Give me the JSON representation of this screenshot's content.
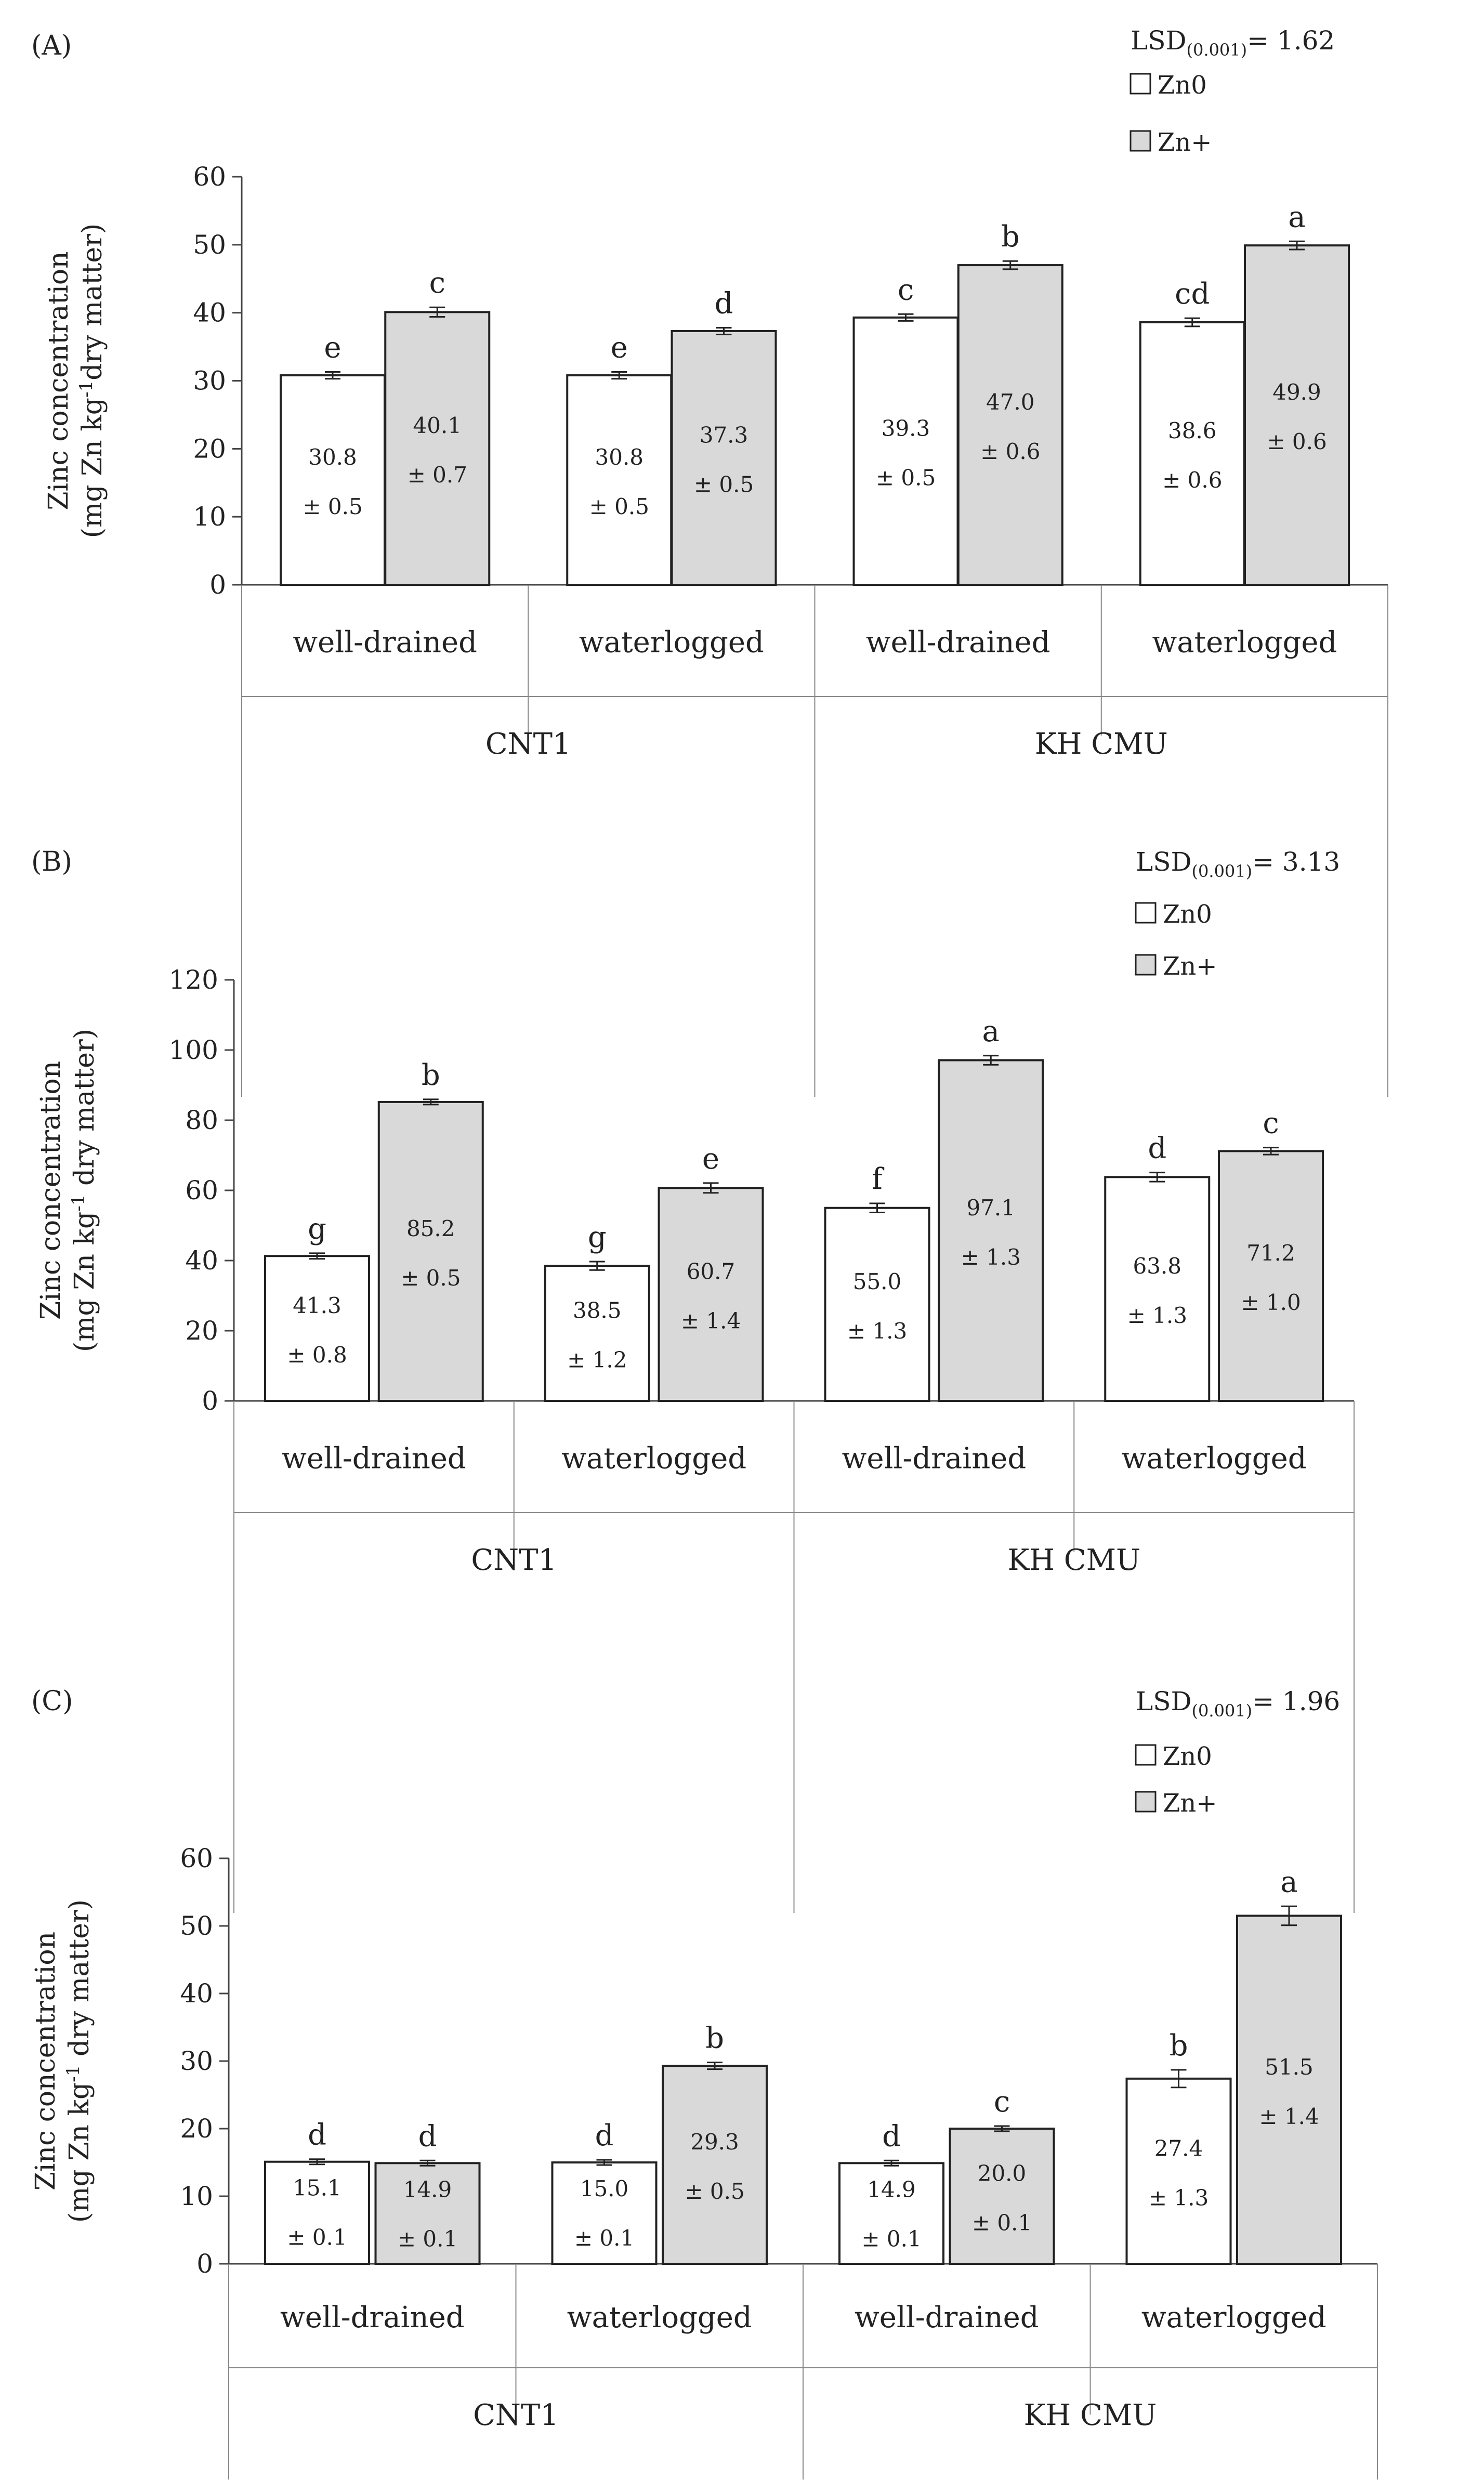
{
  "chart_data": [
    {
      "type": "bar",
      "panel": "(A)",
      "lsd": {
        "label": "LSD",
        "subscript": "(0.001)",
        "value": "= 1.62"
      },
      "legend": [
        "Zn0",
        "Zn+"
      ],
      "ylabel": {
        "line1": "Zinc concentration",
        "line2_pre": "(mg  Zn kg",
        "line2_sup": "-1",
        "line2_post": "dry matter)"
      },
      "ylim": [
        0,
        60
      ],
      "yticks": [
        "0",
        "10",
        "20",
        "30",
        "40",
        "50",
        "60"
      ],
      "conditions": [
        "well-drained",
        "waterlogged",
        "well-drained",
        "waterlogged"
      ],
      "cultivars": [
        "CNT1",
        "KH CMU"
      ],
      "series": [
        {
          "name": "Zn0",
          "values": [
            30.8,
            30.8,
            39.3,
            38.6
          ],
          "labels": [
            "30.8",
            "30.8",
            "39.3",
            "38.6"
          ],
          "errors": [
            "± 0.5",
            "± 0.5",
            "± 0.5",
            "± 0.6"
          ],
          "err_values": [
            0.5,
            0.5,
            0.5,
            0.6
          ],
          "letters": [
            "e",
            "e",
            "c",
            "cd"
          ]
        },
        {
          "name": "Zn+",
          "values": [
            40.1,
            37.3,
            47.0,
            49.9
          ],
          "labels": [
            "40.1",
            "37.3",
            "47.0",
            "49.9"
          ],
          "errors": [
            "± 0.7",
            "± 0.5",
            "± 0.6",
            "± 0.6"
          ],
          "err_values": [
            0.7,
            0.5,
            0.6,
            0.6
          ],
          "letters": [
            "c",
            "d",
            "b",
            "a"
          ]
        }
      ]
    },
    {
      "type": "bar",
      "panel": "(B)",
      "lsd": {
        "label": "LSD",
        "subscript": "(0.001)",
        "value": "= 3.13"
      },
      "legend": [
        "Zn0",
        "Zn+"
      ],
      "ylabel": {
        "line1": "Zinc concentration",
        "line2_pre": "(mg Zn kg",
        "line2_sup": "-1",
        "line2_post": " dry matter)"
      },
      "ylim": [
        0,
        120
      ],
      "yticks": [
        "0",
        "20",
        "40",
        "60",
        "80",
        "100",
        "120"
      ],
      "conditions": [
        "well-drained",
        "waterlogged",
        "well-drained",
        "waterlogged"
      ],
      "cultivars": [
        "CNT1",
        "KH CMU"
      ],
      "series": [
        {
          "name": "Zn0",
          "values": [
            41.3,
            38.5,
            55.0,
            63.8
          ],
          "labels": [
            "41.3",
            "38.5",
            "55.0",
            "63.8"
          ],
          "errors": [
            "± 0.8",
            "± 1.2",
            "± 1.3",
            "± 1.3"
          ],
          "err_values": [
            0.8,
            1.2,
            1.3,
            1.3
          ],
          "letters": [
            "g",
            "g",
            "f",
            "d"
          ]
        },
        {
          "name": "Zn+",
          "values": [
            85.2,
            60.7,
            97.1,
            71.2
          ],
          "labels": [
            "85.2",
            "60.7",
            "97.1",
            "71.2"
          ],
          "errors": [
            "± 0.5",
            "± 1.4",
            "± 1.3",
            "± 1.0"
          ],
          "err_values": [
            0.5,
            1.4,
            1.3,
            1.0
          ],
          "letters": [
            "b",
            "e",
            "a",
            "c"
          ]
        }
      ]
    },
    {
      "type": "bar",
      "panel": "(C)",
      "lsd": {
        "label": "LSD",
        "subscript": "(0.001)",
        "value": "= 1.96"
      },
      "legend": [
        "Zn0",
        "Zn+"
      ],
      "ylabel": {
        "line1": "Zinc concentration",
        "line2_pre": "(mg Zn kg",
        "line2_sup": "-1",
        "line2_post": " dry matter)"
      },
      "ylim": [
        0,
        60
      ],
      "yticks": [
        "0",
        "10",
        "20",
        "30",
        "40",
        "50",
        "60"
      ],
      "conditions": [
        "well-drained",
        "waterlogged",
        "well-drained",
        "waterlogged"
      ],
      "cultivars": [
        "CNT1",
        "KH CMU"
      ],
      "series": [
        {
          "name": "Zn0",
          "values": [
            15.1,
            15.0,
            14.9,
            27.4
          ],
          "labels": [
            "15.1",
            "15.0",
            "14.9",
            "27.4"
          ],
          "errors": [
            "± 0.1",
            "± 0.1",
            "± 0.1",
            "± 1.3"
          ],
          "err_values": [
            0.1,
            0.1,
            0.1,
            1.3
          ],
          "letters": [
            "d",
            "d",
            "d",
            "b"
          ]
        },
        {
          "name": "Zn+",
          "values": [
            14.9,
            29.3,
            20.0,
            51.5
          ],
          "labels": [
            "14.9",
            "29.3",
            "20.0",
            "51.5"
          ],
          "errors": [
            "± 0.1",
            "± 0.5",
            "± 0.1",
            "± 1.4"
          ],
          "err_values": [
            0.1,
            0.5,
            0.1,
            1.4
          ],
          "letters": [
            "d",
            "b",
            "c",
            "a"
          ]
        }
      ]
    }
  ]
}
